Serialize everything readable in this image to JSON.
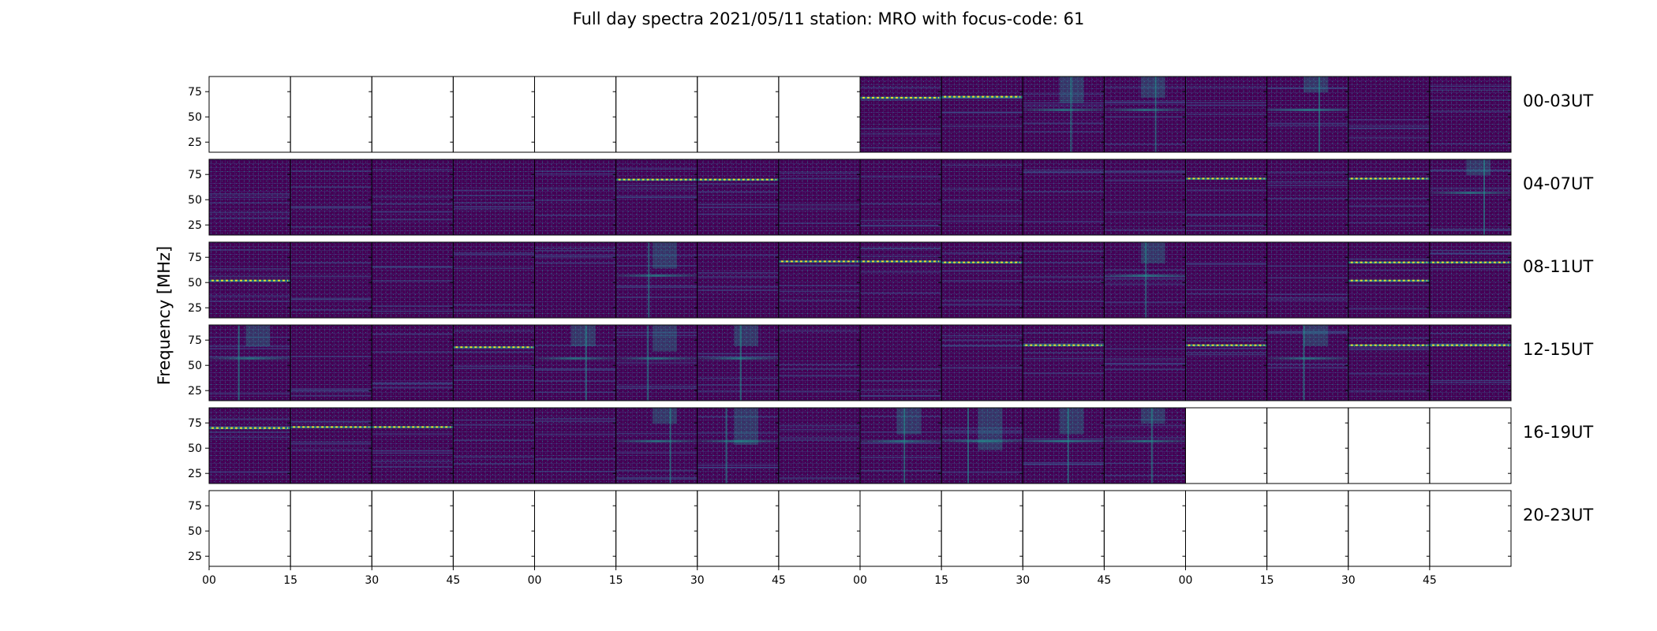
{
  "chart_data": {
    "type": "heatmap",
    "title": "Full day spectra 2021/05/11 station: MRO with focus-code: 61",
    "ylabel": "Frequency [MHz]",
    "xlabel": "",
    "ylim": [
      15,
      90
    ],
    "yticks": [
      25,
      50,
      75
    ],
    "xtick_labels": [
      "00",
      "15",
      "30",
      "45",
      "00",
      "15",
      "30",
      "45",
      "00",
      "15",
      "30",
      "45",
      "00",
      "15",
      "30",
      "45"
    ],
    "panels_per_row": 16,
    "minutes_per_panel": 15,
    "colormap": [
      "#440154",
      "#3b528b",
      "#21918c",
      "#5ec962",
      "#fde725"
    ],
    "rows": [
      {
        "label": "00-03UT",
        "panels": [
          {
            "d": 0
          },
          {
            "d": 0
          },
          {
            "d": 0
          },
          {
            "d": 0
          },
          {
            "d": 0
          },
          {
            "d": 0
          },
          {
            "d": 0
          },
          {
            "d": 0
          },
          {
            "d": 1,
            "lines": [
              69
            ]
          },
          {
            "d": 1,
            "lines": [
              70
            ]
          },
          {
            "d": 1,
            "bright": 0.5
          },
          {
            "d": 1,
            "bright": 0.4
          },
          {
            "d": 1
          },
          {
            "d": 1,
            "bright": 0.3
          },
          {
            "d": 1
          },
          {
            "d": 1
          }
        ]
      },
      {
        "label": "04-07UT",
        "panels": [
          {
            "d": 1
          },
          {
            "d": 1
          },
          {
            "d": 1
          },
          {
            "d": 1
          },
          {
            "d": 1
          },
          {
            "d": 1,
            "lines": [
              70
            ]
          },
          {
            "d": 1,
            "lines": [
              70
            ]
          },
          {
            "d": 1
          },
          {
            "d": 1
          },
          {
            "d": 1
          },
          {
            "d": 1
          },
          {
            "d": 1
          },
          {
            "d": 1,
            "lines": [
              71
            ]
          },
          {
            "d": 1
          },
          {
            "d": 1,
            "lines": [
              71
            ]
          },
          {
            "d": 1,
            "bright": 0.3
          }
        ]
      },
      {
        "label": "08-11UT",
        "panels": [
          {
            "d": 1,
            "lines": [
              52
            ]
          },
          {
            "d": 1
          },
          {
            "d": 1
          },
          {
            "d": 1
          },
          {
            "d": 1
          },
          {
            "d": 1,
            "bright": 0.5
          },
          {
            "d": 1
          },
          {
            "d": 1,
            "lines": [
              71
            ]
          },
          {
            "d": 1,
            "lines": [
              71
            ]
          },
          {
            "d": 1,
            "lines": [
              70
            ]
          },
          {
            "d": 1
          },
          {
            "d": 1,
            "bright": 0.4
          },
          {
            "d": 1
          },
          {
            "d": 1
          },
          {
            "d": 1,
            "lines": [
              70,
              52
            ]
          },
          {
            "d": 1,
            "lines": [
              70
            ]
          }
        ]
      },
      {
        "label": "12-15UT",
        "panels": [
          {
            "d": 1,
            "bright": 0.4
          },
          {
            "d": 1
          },
          {
            "d": 1
          },
          {
            "d": 1,
            "lines": [
              68
            ]
          },
          {
            "d": 1,
            "bright": 0.4
          },
          {
            "d": 1,
            "bright": 0.5
          },
          {
            "d": 1,
            "bright": 0.4
          },
          {
            "d": 1
          },
          {
            "d": 1
          },
          {
            "d": 1
          },
          {
            "d": 1,
            "lines": [
              70
            ]
          },
          {
            "d": 1
          },
          {
            "d": 1,
            "lines": [
              70
            ]
          },
          {
            "d": 1,
            "bright": 0.4
          },
          {
            "d": 1,
            "lines": [
              70
            ]
          },
          {
            "d": 1,
            "lines": [
              70
            ]
          }
        ]
      },
      {
        "label": "16-19UT",
        "panels": [
          {
            "d": 1,
            "lines": [
              70
            ]
          },
          {
            "d": 1,
            "lines": [
              71
            ]
          },
          {
            "d": 1,
            "lines": [
              71
            ]
          },
          {
            "d": 1
          },
          {
            "d": 1
          },
          {
            "d": 1,
            "bright": 0.3
          },
          {
            "d": 1,
            "bright": 0.7
          },
          {
            "d": 1
          },
          {
            "d": 1,
            "bright": 0.5
          },
          {
            "d": 1,
            "bright": 0.8
          },
          {
            "d": 1,
            "bright": 0.5
          },
          {
            "d": 1,
            "bright": 0.3
          },
          {
            "d": 0
          },
          {
            "d": 0
          },
          {
            "d": 0
          },
          {
            "d": 0
          }
        ]
      },
      {
        "label": "20-23UT",
        "panels": [
          {
            "d": 0
          },
          {
            "d": 0
          },
          {
            "d": 0
          },
          {
            "d": 0
          },
          {
            "d": 0
          },
          {
            "d": 0
          },
          {
            "d": 0
          },
          {
            "d": 0
          },
          {
            "d": 0
          },
          {
            "d": 0
          },
          {
            "d": 0
          },
          {
            "d": 0
          },
          {
            "d": 0
          },
          {
            "d": 0
          },
          {
            "d": 0
          },
          {
            "d": 0
          }
        ]
      }
    ]
  }
}
